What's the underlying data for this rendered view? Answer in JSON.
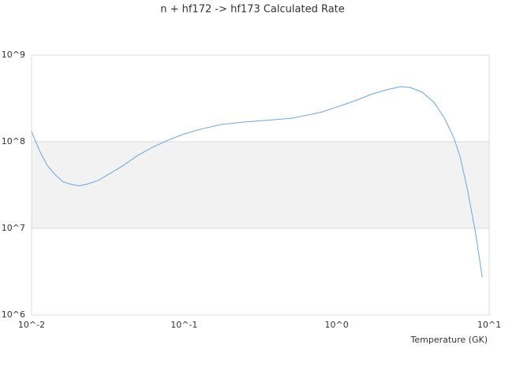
{
  "chart_data": {
    "type": "line",
    "title": "n + hf172 -> hf173 Calculated Rate",
    "x_label": "Temperature (GK)",
    "x": [
      0.01,
      0.0113,
      0.0127,
      0.0143,
      0.0161,
      0.0181,
      0.0204,
      0.023,
      0.0275,
      0.0329,
      0.0393,
      0.0499,
      0.0634,
      0.0804,
      0.1,
      0.129,
      0.174,
      0.249,
      0.335,
      0.509,
      0.774,
      1.0,
      1.32,
      1.67,
      2.12,
      2.63,
      3.03,
      3.63,
      4.35,
      5.09,
      5.87,
      6.46,
      7.19,
      8.21,
      9.0
    ],
    "series": [
      {
        "color": "#6aa6e0",
        "values": [
          131000000,
          78000000,
          53000000,
          41500000,
          34400000,
          32300000,
          31000000,
          32300000,
          35900000,
          43300000,
          52300000,
          70000000,
          88000000,
          106000000,
          123000000,
          140000000,
          158000000,
          169000000,
          176000000,
          187000000,
          217000000,
          251000000,
          297000000,
          351000000,
          398000000,
          433000000,
          424000000,
          374000000,
          285000000,
          187000000,
          111000000,
          66000000,
          28500000,
          8100000,
          2730000
        ]
      }
    ],
    "xlim": [
      0.01,
      10
    ],
    "ylim": [
      1000000,
      1000000000
    ],
    "log_x": true,
    "log_y": true,
    "grid": true,
    "xticks": [
      {
        "value": 0.01,
        "label": "10^-2"
      },
      {
        "value": 0.1,
        "label": "10^-1"
      },
      {
        "value": 1,
        "label": "10^0"
      },
      {
        "value": 10,
        "label": "10^1"
      }
    ],
    "yticks": [
      {
        "value": 1000000,
        "label": "10^6"
      },
      {
        "value": 10000000,
        "label": "10^7"
      },
      {
        "value": 100000000,
        "label": "10^8"
      },
      {
        "value": 1000000000,
        "label": "10^9"
      }
    ]
  }
}
